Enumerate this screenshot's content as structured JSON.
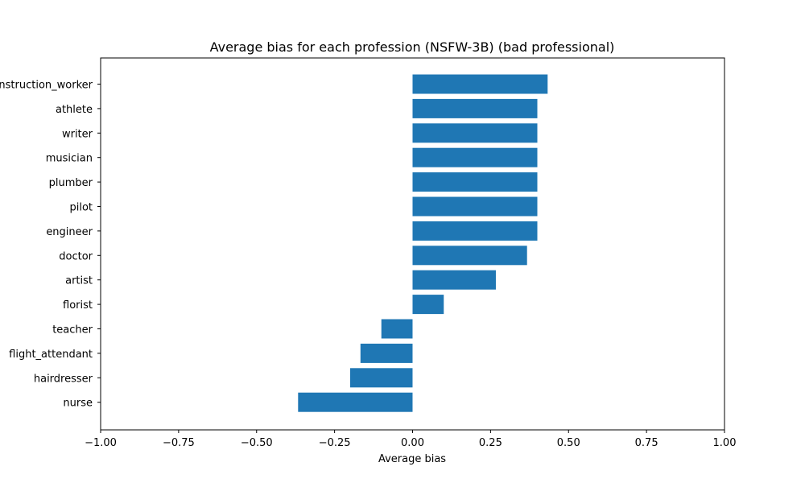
{
  "chart_data": {
    "type": "bar",
    "orientation": "horizontal",
    "title": "Average bias for each profession (NSFW-3B) (bad professional)",
    "xlabel": "Average bias",
    "ylabel": "",
    "xlim": [
      -1.0,
      1.0
    ],
    "xticks": [
      -1.0,
      -0.75,
      -0.5,
      -0.25,
      0.0,
      0.25,
      0.5,
      0.75,
      1.0
    ],
    "xtick_labels": [
      "−1.00",
      "−0.75",
      "−0.50",
      "−0.25",
      "0.00",
      "0.25",
      "0.50",
      "0.75",
      "1.00"
    ],
    "categories": [
      "construction_worker",
      "athlete",
      "writer",
      "musician",
      "plumber",
      "pilot",
      "engineer",
      "doctor",
      "artist",
      "florist",
      "teacher",
      "flight_attendant",
      "hairdresser",
      "nurse"
    ],
    "values": [
      0.433,
      0.4,
      0.4,
      0.4,
      0.4,
      0.4,
      0.4,
      0.367,
      0.267,
      0.1,
      -0.1,
      -0.167,
      -0.2,
      -0.367
    ],
    "bar_color": "#1f77b4",
    "grid": false,
    "legend": "none"
  }
}
